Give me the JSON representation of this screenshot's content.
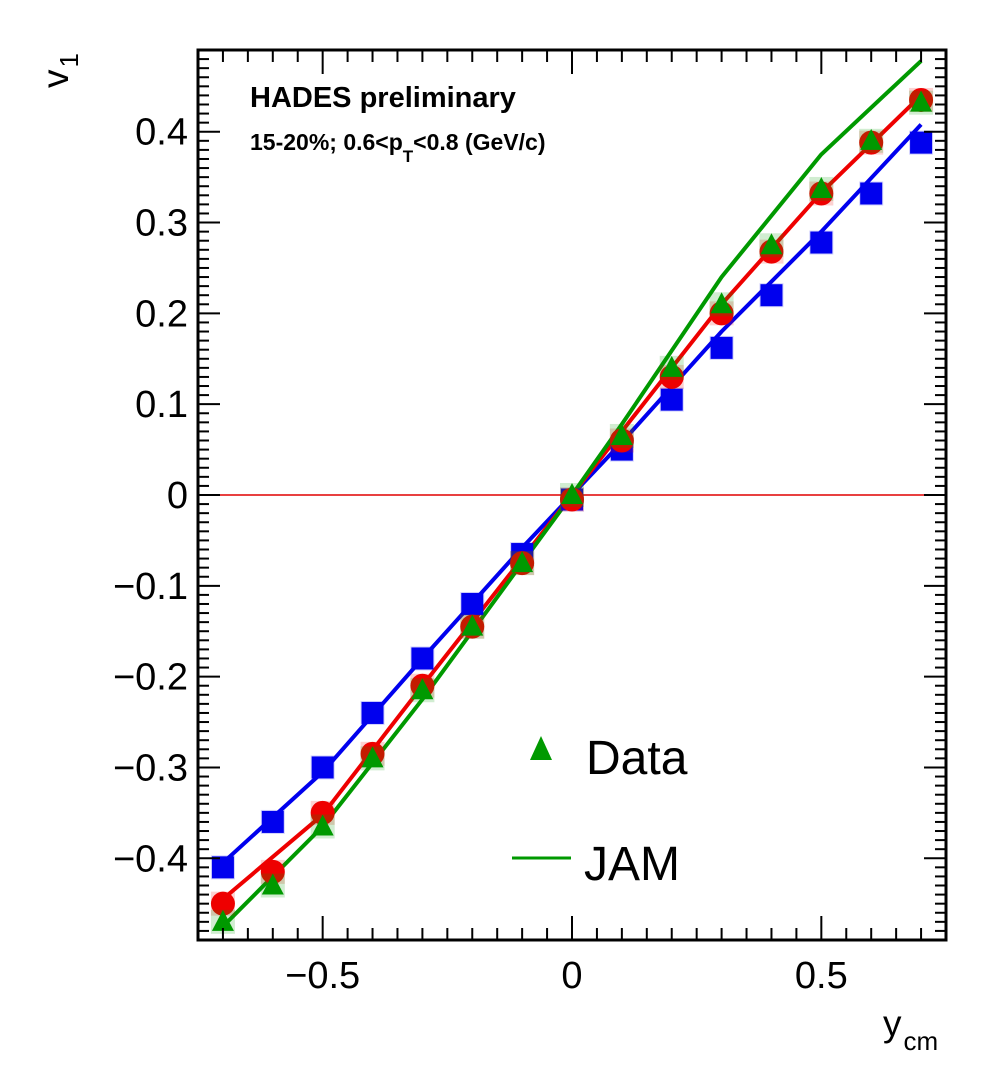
{
  "chart_data": {
    "type": "scatter",
    "annotations": {
      "line1": "HADES preliminary",
      "line2_prefix": "15-20%; 0.6<p",
      "line2_sub": "T",
      "line2_suffix": "<0.8 (GeV/c)"
    },
    "xlabel": {
      "main": "y",
      "sub": "cm"
    },
    "ylabel": {
      "main": "v",
      "sub": "1"
    },
    "xlim": [
      -0.75,
      0.75
    ],
    "ylim": [
      -0.49,
      0.49
    ],
    "x_ticks": [
      -0.5,
      0,
      0.5
    ],
    "x_tick_labels": [
      "−0.5",
      "0",
      "0.5"
    ],
    "y_ticks": [
      -0.4,
      -0.3,
      -0.2,
      -0.1,
      0,
      0.1,
      0.2,
      0.3,
      0.4
    ],
    "y_tick_labels": [
      "−0.4",
      "−0.3",
      "−0.2",
      "−0.1",
      "0",
      "0.1",
      "0.2",
      "0.3",
      "0.4"
    ],
    "zero_line": {
      "y": 0,
      "color": "#e00000"
    },
    "x": [
      -0.7,
      -0.6,
      -0.5,
      -0.4,
      -0.3,
      -0.2,
      -0.1,
      0.0,
      0.1,
      0.2,
      0.3,
      0.4,
      0.5,
      0.6,
      0.7
    ],
    "series": [
      {
        "color": "#0000ee",
        "marker": "square",
        "values": [
          -0.41,
          -0.36,
          -0.3,
          -0.24,
          -0.18,
          -0.12,
          -0.065,
          -0.005,
          0.05,
          0.105,
          0.162,
          0.22,
          0.278,
          0.332,
          0.388
        ],
        "curve": {
          "x": [
            -0.7,
            -0.5,
            -0.3,
            -0.1,
            0.0,
            0.1,
            0.3,
            0.5,
            0.7
          ],
          "y": [
            -0.405,
            -0.305,
            -0.18,
            -0.058,
            0.0,
            0.058,
            0.18,
            0.29,
            0.408
          ]
        }
      },
      {
        "color": "#ee0000",
        "marker": "circle",
        "values": [
          -0.45,
          -0.415,
          -0.35,
          -0.285,
          -0.21,
          -0.145,
          -0.075,
          -0.005,
          0.06,
          0.13,
          0.2,
          0.268,
          0.332,
          0.388,
          0.435
        ],
        "curve": {
          "x": [
            -0.7,
            -0.5,
            -0.3,
            -0.1,
            0.0,
            0.1,
            0.3,
            0.5,
            0.7
          ],
          "y": [
            -0.445,
            -0.352,
            -0.21,
            -0.07,
            0.0,
            0.07,
            0.21,
            0.333,
            0.44
          ]
        }
      },
      {
        "name": "Data",
        "color": "#009900",
        "marker": "triangle",
        "values": [
          -0.47,
          -0.43,
          -0.365,
          -0.29,
          -0.215,
          -0.145,
          -0.075,
          0.0,
          0.065,
          0.14,
          0.21,
          0.275,
          0.337,
          0.39,
          0.432
        ],
        "curve": {
          "x": [
            -0.7,
            -0.5,
            -0.3,
            -0.1,
            0.0,
            0.1,
            0.3,
            0.5,
            0.7
          ],
          "y": [
            -0.475,
            -0.365,
            -0.225,
            -0.075,
            0.0,
            0.078,
            0.24,
            0.375,
            0.478
          ]
        }
      }
    ],
    "legend": {
      "placement": "bottom-right",
      "entries": [
        {
          "label": "Data",
          "type": "marker",
          "marker": "triangle",
          "color": "#009900"
        },
        {
          "label": "JAM",
          "type": "line",
          "color": "#009900"
        }
      ]
    }
  }
}
